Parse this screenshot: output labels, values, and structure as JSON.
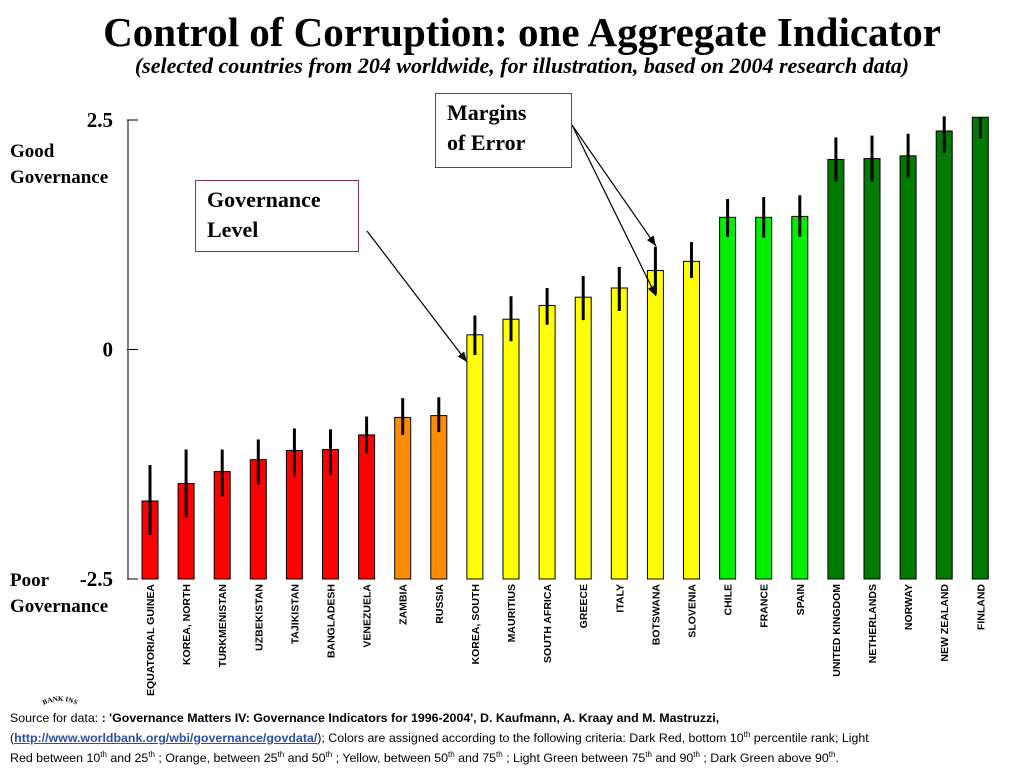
{
  "title": "Control of Corruption: one Aggregate Indicator",
  "subtitle": "(selected countries from 204 worldwide, for illustration, based on 2004 research data)",
  "labels": {
    "good": [
      "Good",
      "Governance"
    ],
    "poor": [
      "Poor",
      "Governance"
    ]
  },
  "callouts": {
    "margins": [
      "Margins",
      "of Error"
    ],
    "governance": [
      "Governance",
      "Level"
    ]
  },
  "logo_text": "BANK INS",
  "footer": {
    "source_prefix": "Source for data: ",
    "source_citation": ": 'Governance Matters IV: Governance Indicators for 1996-2004', D. Kaufmann, A. Kraay and M. Mastruzzi,",
    "link_text": "http://www.worldbank.org/wbi/governance/govdata/",
    "criteria_intro": ");  Colors are assigned according to the following criteria:  Dark Red, bottom 10",
    "sup_th": "th",
    "criteria_1": " percentile rank; Light Red between 10",
    "criteria_2": " and 25",
    "criteria_3": " ; Orange, between 25",
    "criteria_4": "  and 50",
    "criteria_5": " ; Yellow, between 50",
    "criteria_6": "  and 75",
    "criteria_7": " ; Light  Green between 75",
    "criteria_8": "  and 90",
    "criteria_9": "  ; Dark Green above 90",
    "criteria_end": "."
  },
  "chart_data": {
    "type": "bar",
    "title": "Control of Corruption: one Aggregate Indicator",
    "subtitle": "(selected countries from 204 worldwide, for illustration, based on 2004 research data)",
    "ylim": [
      -2.5,
      2.5
    ],
    "yticks": [
      {
        "value": 2.5,
        "label": "2.5"
      },
      {
        "value": 0,
        "label": "0"
      },
      {
        "value": -2.5,
        "label": "-2.5"
      }
    ],
    "grid": false,
    "categories": [
      "EQUATORIAL GUINEA",
      "KOREA, NORTH",
      "TURKMENISTAN",
      "UZBEKISTAN",
      "TAJIKISTAN",
      "BANGLADESH",
      "VENEZUELA",
      "ZAMBIA",
      "RUSSIA",
      "KOREA, SOUTH",
      "MAURITIUS",
      "SOUTH AFRICA",
      "GREECE",
      "ITALY",
      "BOTSWANA",
      "SLOVENIA",
      "CHILE",
      "FRANCE",
      "SPAIN",
      "UNITED KINGDOM",
      "NETHERLANDS",
      "NORWAY",
      "NEW ZEALAND",
      "FINLAND"
    ],
    "values": [
      -1.65,
      -1.46,
      -1.33,
      -1.2,
      -1.1,
      -1.09,
      -0.93,
      -0.74,
      -0.72,
      0.16,
      0.33,
      0.48,
      0.57,
      0.67,
      0.86,
      0.96,
      1.44,
      1.44,
      1.45,
      2.07,
      2.08,
      2.11,
      2.38,
      2.53
    ],
    "error_low": [
      -2.02,
      -1.83,
      -1.6,
      -1.47,
      -1.38,
      -1.37,
      -1.13,
      -0.93,
      -0.9,
      -0.06,
      0.09,
      0.27,
      0.32,
      0.42,
      0.6,
      0.78,
      1.23,
      1.22,
      1.23,
      1.83,
      1.83,
      1.87,
      2.14,
      2.3
    ],
    "error_high": [
      -1.26,
      -1.09,
      -1.09,
      -0.98,
      -0.86,
      -0.87,
      -0.73,
      -0.53,
      -0.52,
      0.37,
      0.58,
      0.67,
      0.8,
      0.9,
      1.12,
      1.17,
      1.64,
      1.66,
      1.68,
      2.31,
      2.33,
      2.35,
      2.54,
      2.53
    ],
    "colors": [
      "#ff0000",
      "#ff0000",
      "#ff0000",
      "#ff0000",
      "#ff0000",
      "#ff0000",
      "#ff0000",
      "#ff8c00",
      "#ff8c00",
      "#ffff00",
      "#ffff00",
      "#ffff00",
      "#ffff00",
      "#ffff00",
      "#ffff00",
      "#ffff00",
      "#00ee00",
      "#00ee00",
      "#00ee00",
      "#007a00",
      "#007a00",
      "#007a00",
      "#007a00",
      "#007a00"
    ],
    "annotations": [
      "Governance Level",
      "Margins of Error"
    ]
  }
}
